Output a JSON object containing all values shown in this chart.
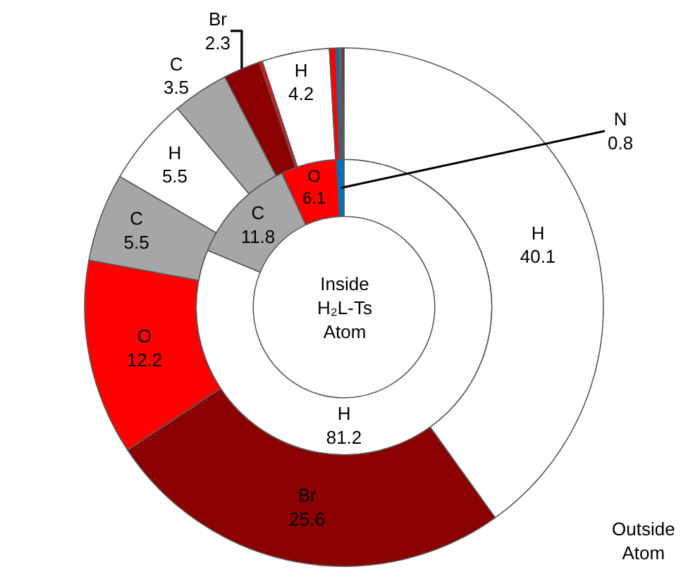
{
  "chart_data": {
    "type": "donut",
    "series": [
      {
        "name": "Inside H₂L-Ts Atom",
        "values": [
          81.2,
          11.8,
          6.1,
          0.8
        ],
        "value_labels": [
          "H\n81.2",
          "C\n11.8",
          "O\n6.1",
          "N\n0.8"
        ],
        "colors": [
          "#ffffff",
          "#a6a6a6",
          "#ff0000",
          "#0070c0"
        ]
      },
      {
        "name": "Outside Atom",
        "values": [
          40.1,
          25.6,
          12.2,
          5.5,
          5.5,
          3.5,
          2.3,
          0.2,
          4.2,
          0.4,
          0.2,
          0.1,
          0.1,
          0.1
        ],
        "value_labels": [
          "H\n40.1",
          "Br\n25.6",
          "O\n12.2",
          "C\n5.5",
          "H\n5.5",
          "C\n3.5",
          "Br\n2.3",
          null,
          "H\n4.2",
          null,
          null,
          null,
          null,
          null
        ],
        "colors": [
          "#ffffff",
          "#8b0000",
          "#ff0000",
          "#a6a6a6",
          "#ffffff",
          "#a6a6a6",
          "#8b0000",
          "#ff0000",
          "#ffffff",
          "#ff0000",
          "#0070c0",
          "#a6a6a6",
          "#ff0000",
          "#1a1a3a"
        ]
      }
    ]
  }
}
